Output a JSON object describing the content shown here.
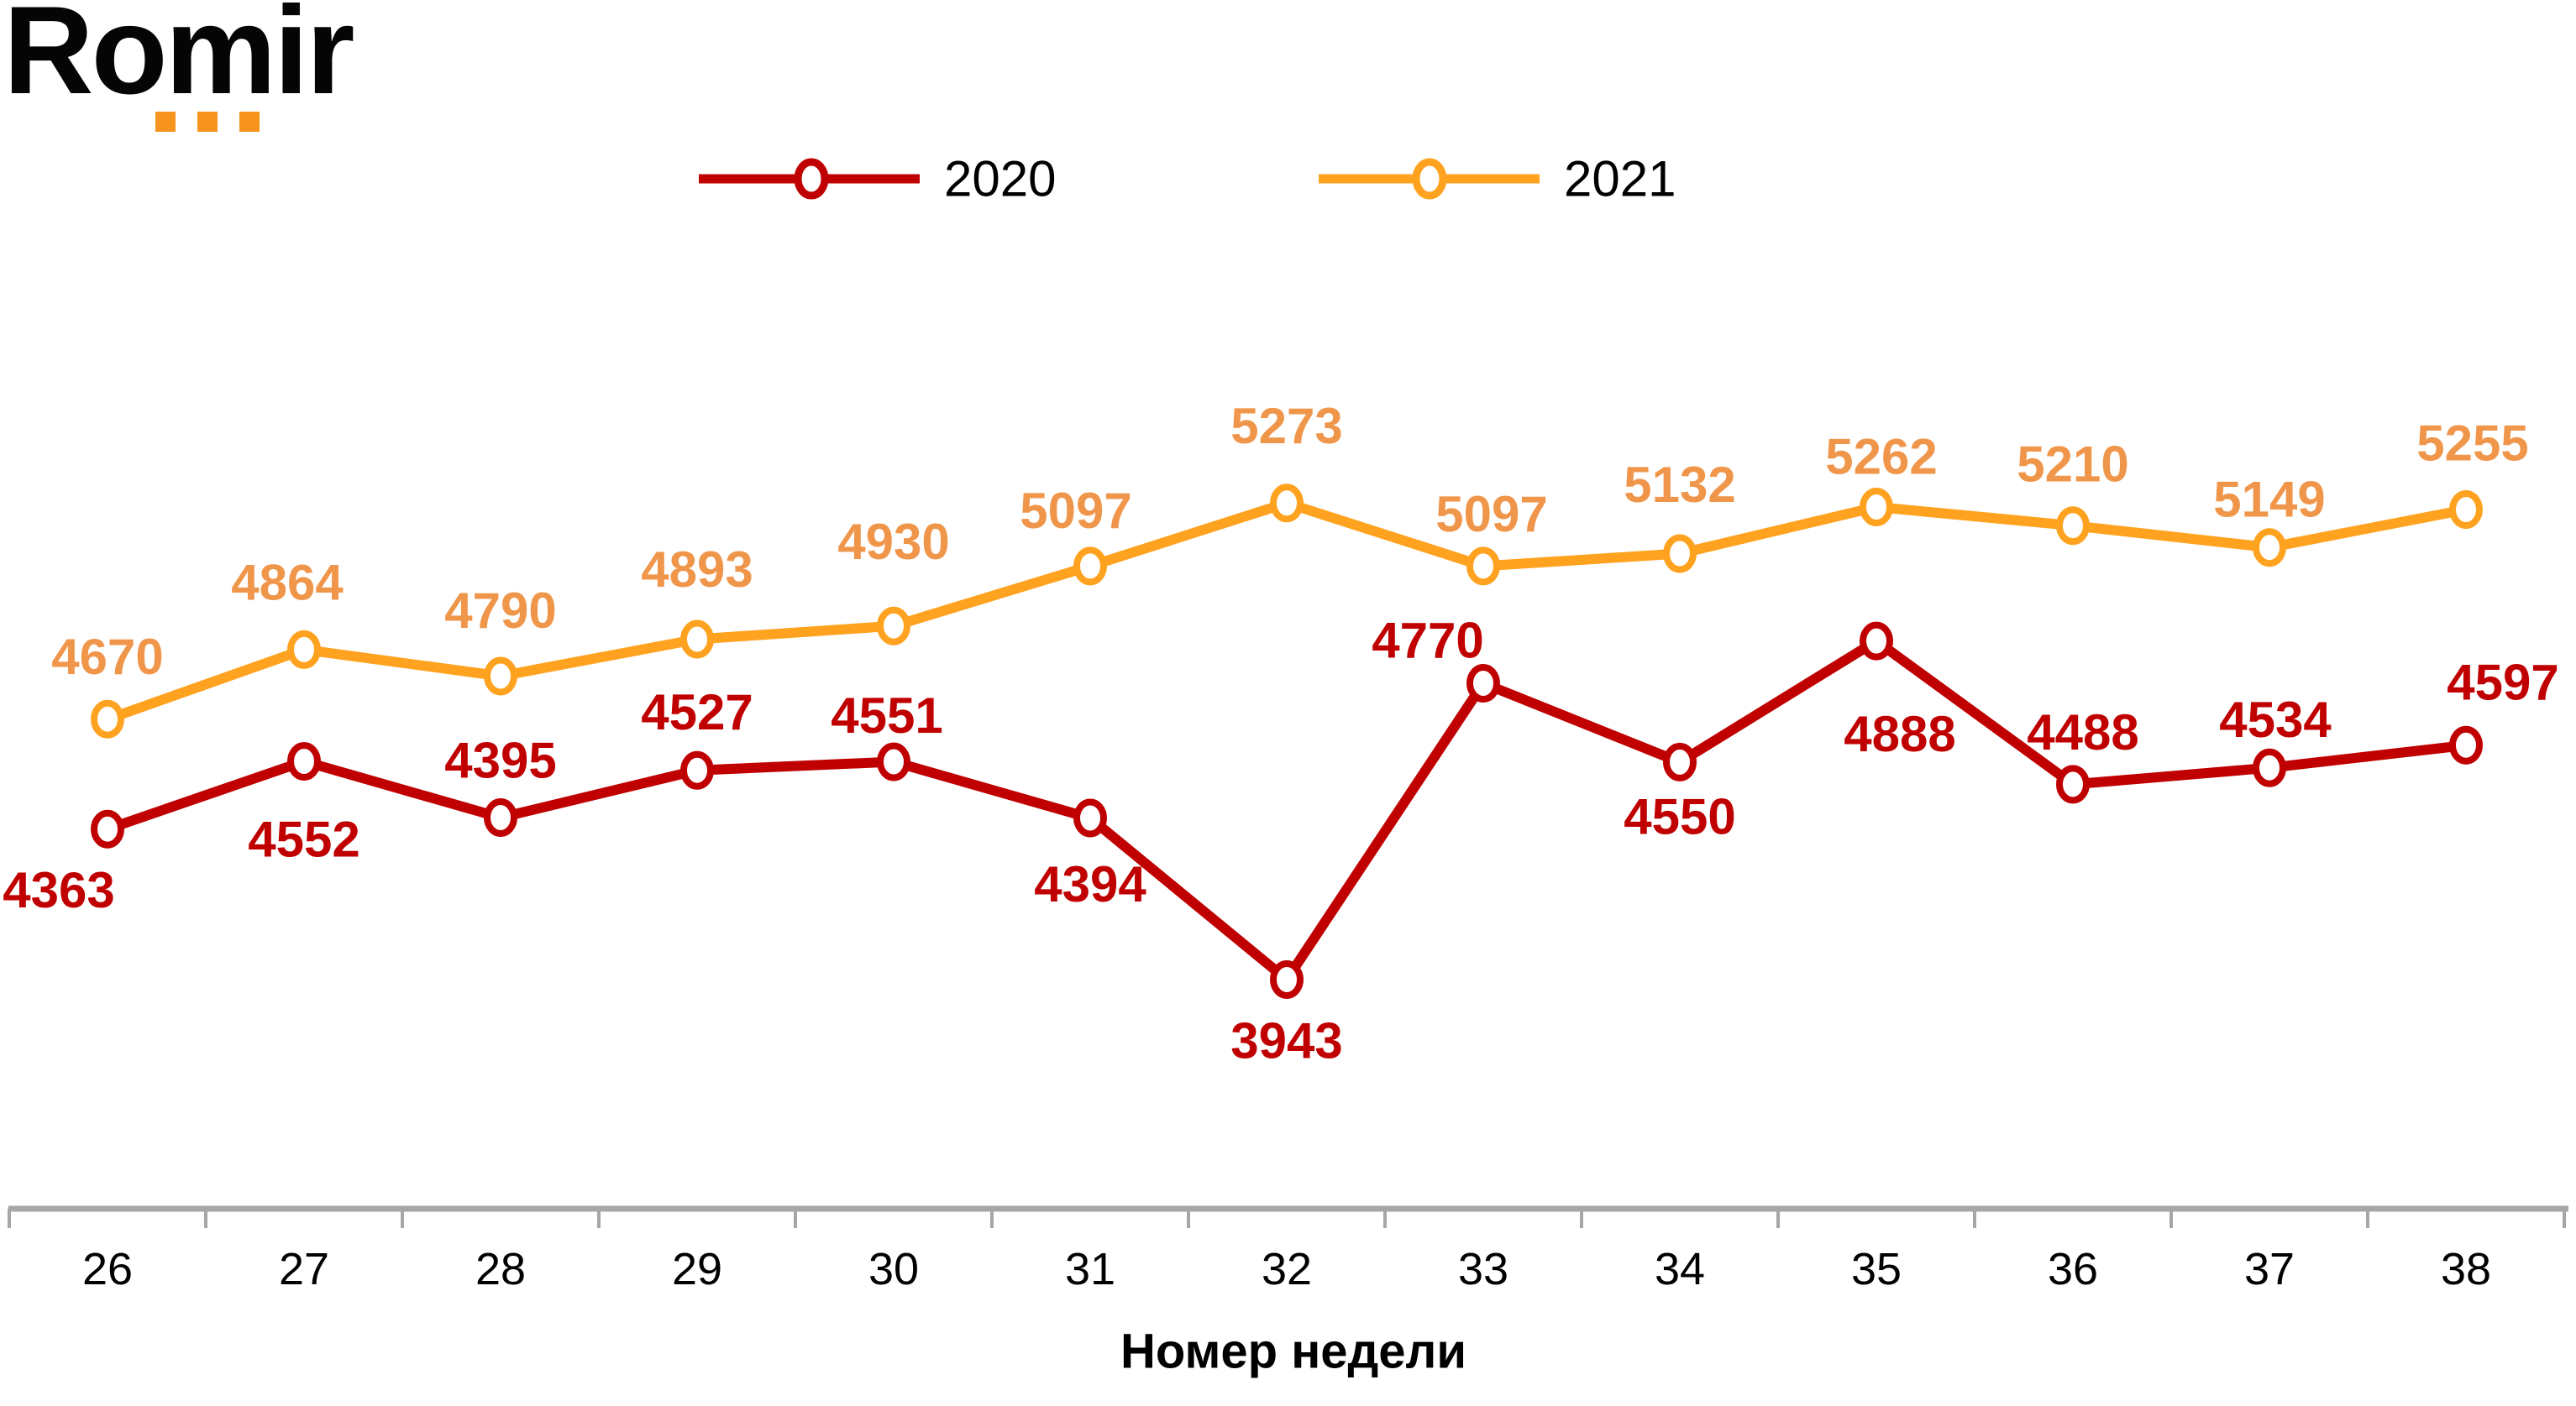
{
  "logo": {
    "text": "Romir",
    "text_color": "#050505",
    "accent_color": "#F7941E"
  },
  "chart_data": {
    "type": "line",
    "title": "",
    "categories": [
      26,
      27,
      28,
      29,
      30,
      31,
      32,
      33,
      34,
      35,
      36,
      37,
      38
    ],
    "xlabel": "Номер недели",
    "ylim": [
      3900,
      5450
    ],
    "grid": false,
    "legend_position": "top-center",
    "marker_style": "open-circle",
    "data_labels": true,
    "axis_color": "#A6A6A6",
    "tick_label_color": "#000000",
    "legend_text_color": "#000000",
    "series": [
      {
        "name": "2020",
        "color": "#C00000",
        "label_color": "#C00000",
        "values": [
          4363,
          4552,
          4395,
          4527,
          4551,
          4394,
          3943,
          4770,
          4550,
          4888,
          4488,
          4534,
          4597
        ],
        "label_offsets": [
          [
            -58,
            73
          ],
          [
            0,
            93
          ],
          [
            0,
            -68
          ],
          [
            0,
            -69
          ],
          [
            -8,
            -55
          ],
          [
            0,
            79
          ],
          [
            0,
            73
          ],
          [
            -66,
            -51
          ],
          [
            0,
            65
          ],
          [
            28,
            111
          ],
          [
            12,
            -62
          ],
          [
            7,
            -57
          ],
          [
            44,
            -75
          ]
        ]
      },
      {
        "name": "2021",
        "color": "#FFA21F",
        "label_color": "#F0964B",
        "values": [
          4670,
          4864,
          4790,
          4893,
          4930,
          5097,
          5273,
          5097,
          5132,
          5262,
          5210,
          5149,
          5255
        ],
        "label_offsets": [
          [
            0,
            -74
          ],
          [
            -20,
            -80
          ],
          [
            0,
            -78
          ],
          [
            0,
            -83
          ],
          [
            0,
            -100
          ],
          [
            -17,
            -66
          ],
          [
            0,
            -92
          ],
          [
            10,
            -62
          ],
          [
            0,
            -82
          ],
          [
            6,
            -60
          ],
          [
            0,
            -73
          ],
          [
            0,
            -57
          ],
          [
            8,
            -79
          ]
        ]
      }
    ]
  }
}
